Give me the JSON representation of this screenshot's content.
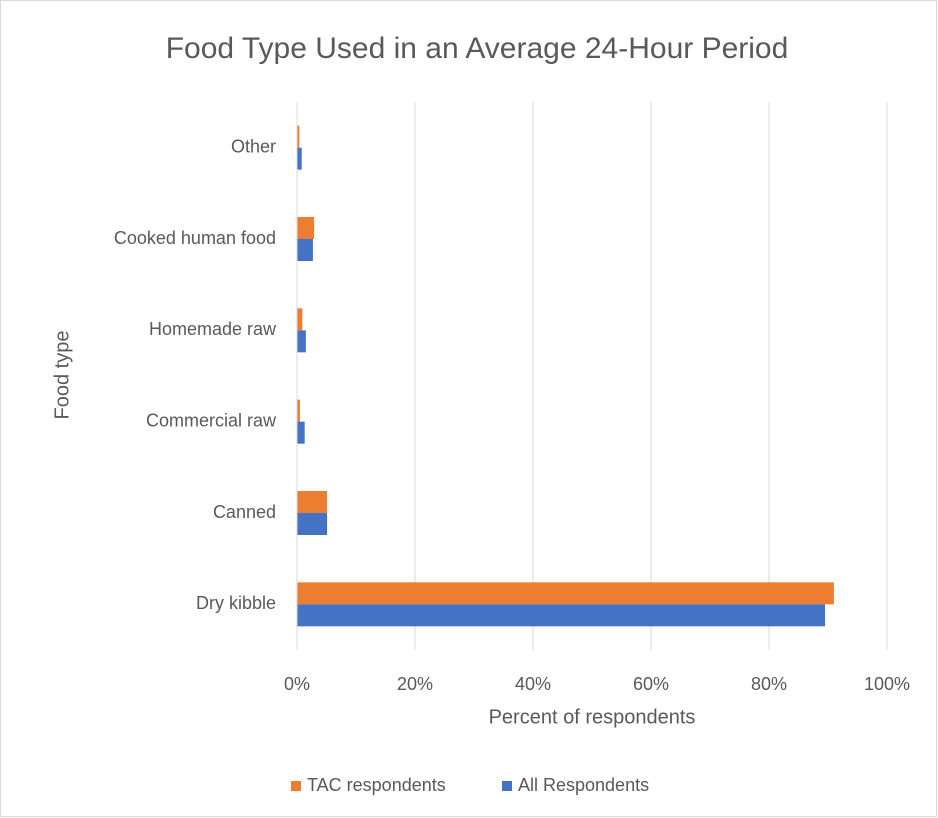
{
  "chart_data": {
    "type": "hbar",
    "title": "Food Type Used in an Average 24-Hour Period",
    "x_label": "Percent of respondents",
    "y_label": "Food type",
    "categories": [
      "Dry kibble",
      "Canned",
      "Commercial raw",
      "Homemade raw",
      "Cooked human food",
      "Other"
    ],
    "series": [
      {
        "name": "TAC respondents",
        "color": "#ed7d31",
        "values": [
          91.0,
          5.1,
          0.5,
          0.9,
          2.9,
          0.4
        ]
      },
      {
        "name": "All Respondents",
        "color": "#4472c4",
        "values": [
          89.5,
          5.1,
          1.3,
          1.5,
          2.7,
          0.8
        ]
      }
    ],
    "xlim": [
      0,
      100
    ],
    "xticks": [
      {
        "value": 0,
        "label": "0%"
      },
      {
        "value": 20,
        "label": "20%"
      },
      {
        "value": 40,
        "label": "40%"
      },
      {
        "value": 60,
        "label": "60%"
      },
      {
        "value": 80,
        "label": "80%"
      },
      {
        "value": 100,
        "label": "100%"
      }
    ],
    "grid": true,
    "legend": "bottom"
  }
}
